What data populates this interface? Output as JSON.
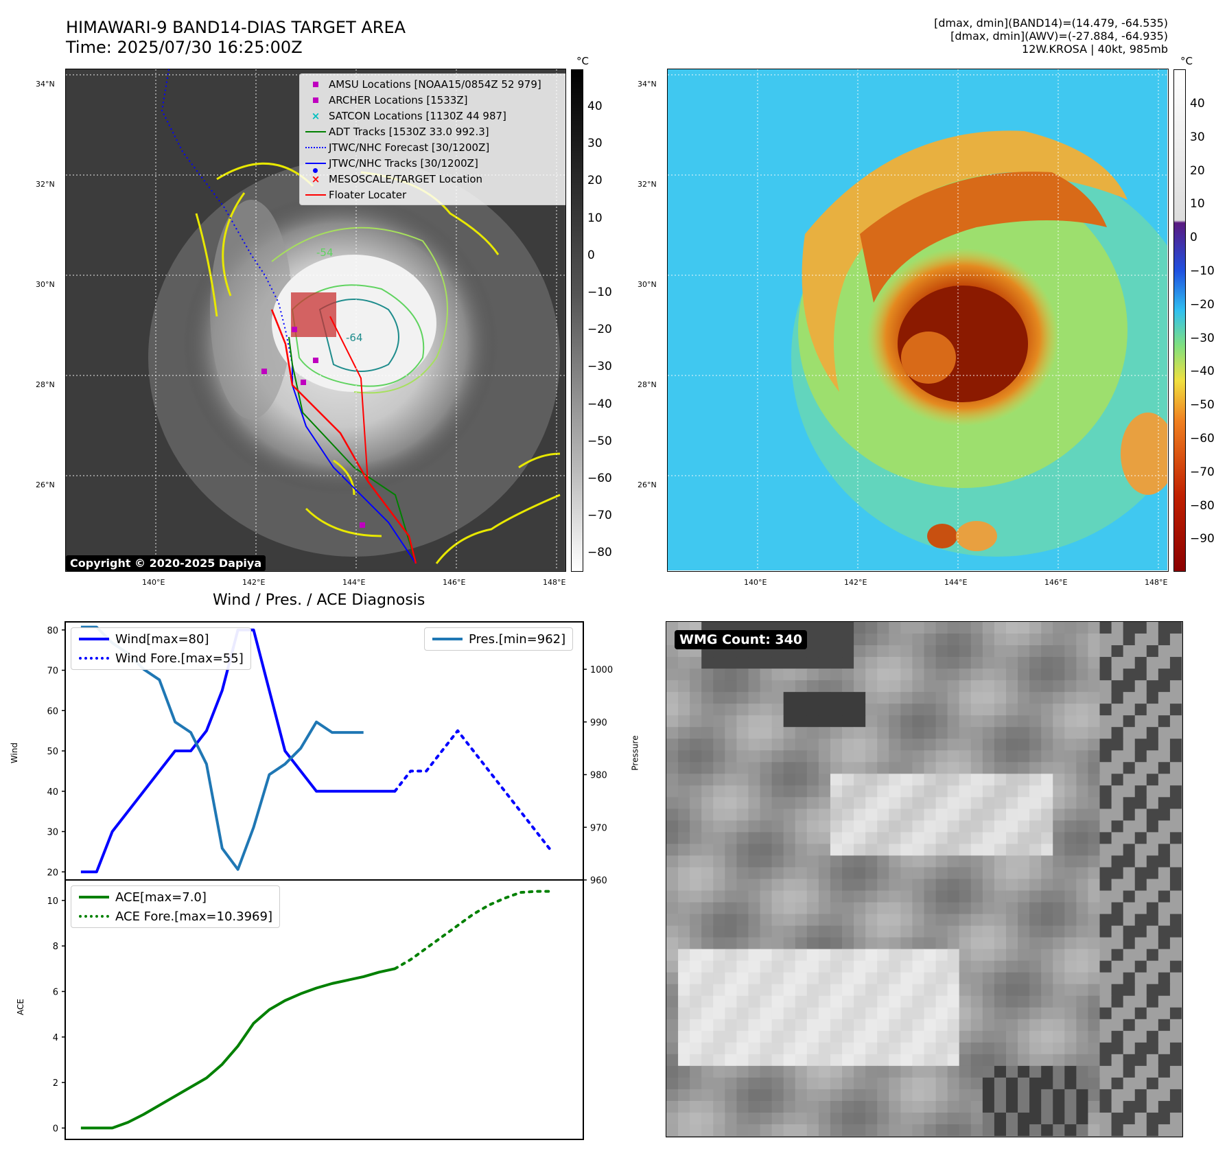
{
  "top_left": {
    "title_line1": "HIMAWARI-9 BAND14-DIAS TARGET AREA",
    "title_line2": "Time: 2025/07/30 16:25:00Z",
    "copyright": "Copyright © 2020-2025 Dapiya",
    "colorbar_unit": "°C",
    "colorbar_ticks": [
      "40",
      "30",
      "20",
      "10",
      "0",
      "−10",
      "−20",
      "−30",
      "−40",
      "−50",
      "−60",
      "−70",
      "−80"
    ],
    "lat_labels": [
      "34°N",
      "32°N",
      "30°N",
      "28°N",
      "26°N"
    ],
    "lon_labels": [
      "140°E",
      "142°E",
      "144°E",
      "146°E",
      "148°E"
    ],
    "contour_labels": [
      "-54",
      "-64"
    ],
    "legend": [
      {
        "label": "AMSU Locations [NOAA15/0854Z 52 979]",
        "symbol": "square",
        "color": "#bf00bf"
      },
      {
        "label": "ARCHER Locations [1533Z]",
        "symbol": "square",
        "color": "#bf00bf"
      },
      {
        "label": "SATCON Locations [1130Z 44 987]",
        "symbol": "x",
        "color": "#00bfbf"
      },
      {
        "label": "ADT Tracks [1530Z 33.0 992.3]",
        "symbol": "line",
        "color": "#008000"
      },
      {
        "label": "JTWC/NHC Forecast [30/1200Z]",
        "symbol": "dotted",
        "color": "#0000ff"
      },
      {
        "label": "JTWC/NHC Tracks [30/1200Z]",
        "symbol": "line-dot",
        "color": "#0000ff"
      },
      {
        "label": "MESOSCALE/TARGET Location",
        "symbol": "x",
        "color": "#ff0000"
      },
      {
        "label": "Floater Locater",
        "symbol": "line",
        "color": "#ff0000"
      }
    ]
  },
  "top_right": {
    "info_line1": "[dmax, dmin](BAND14)=(14.479, -64.535)",
    "info_line2": "[dmax, dmin](AWV)=(-27.884, -64.935)",
    "info_line3": "12W.KROSA | 40kt, 985mb",
    "colorbar_unit": "°C",
    "colorbar_ticks": [
      "40",
      "30",
      "20",
      "10",
      "0",
      "−10",
      "−20",
      "−30",
      "−40",
      "−50",
      "−60",
      "−70",
      "−80",
      "−90"
    ],
    "lat_labels": [
      "34°N",
      "32°N",
      "30°N",
      "28°N",
      "26°N"
    ],
    "lon_labels": [
      "140°E",
      "142°E",
      "144°E",
      "146°E",
      "148°E"
    ]
  },
  "bottom_left_title": "Wind / Pres. / ACE Diagnosis",
  "bottom_right": {
    "badge": "WMG Count: 340"
  },
  "axes": {
    "wind_ylabel": "Wind",
    "pres_ylabel": "Pressure",
    "ace_ylabel": "ACE",
    "wind_ticks": [
      "80",
      "70",
      "60",
      "50",
      "40",
      "30",
      "20"
    ],
    "pres_ticks": [
      "1000",
      "990",
      "980",
      "970",
      "960"
    ],
    "ace_ticks": [
      "10",
      "8",
      "6",
      "4",
      "2",
      "0"
    ]
  },
  "legends": {
    "wind": "Wind[max=80]",
    "wind_fore": "Wind Fore.[max=55]",
    "pres": "Pres.[min=962]",
    "ace": "ACE[max=7.0]",
    "ace_fore": "ACE Fore.[max=10.3969]"
  },
  "chart_data": [
    {
      "type": "line",
      "title": "Wind / Pres. / ACE Diagnosis",
      "ylabel": "Wind",
      "ylim": [
        18,
        82
      ],
      "series": [
        {
          "name": "Wind[max=80]",
          "style": "solid",
          "color": "#0000ff",
          "x": [
            0,
            1,
            2,
            3,
            4,
            5,
            6,
            7,
            8,
            9,
            10,
            11,
            12,
            13,
            14,
            15,
            16,
            17,
            18,
            19,
            20
          ],
          "values": [
            20,
            20,
            30,
            35,
            40,
            45,
            50,
            50,
            55,
            65,
            80,
            80,
            65,
            50,
            45,
            40,
            40,
            40,
            40,
            40,
            40
          ]
        },
        {
          "name": "Wind Fore.[max=55]",
          "style": "dotted",
          "color": "#0000ff",
          "x": [
            20,
            21,
            22,
            23,
            24,
            25,
            26,
            27,
            28,
            29,
            30
          ],
          "values": [
            40,
            45,
            45,
            50,
            55,
            50,
            45,
            40,
            35,
            30,
            25
          ]
        }
      ]
    },
    {
      "type": "line",
      "ylabel": "Pressure",
      "ylim": [
        960,
        1009
      ],
      "series": [
        {
          "name": "Pres.[min=962]",
          "style": "solid",
          "color": "#1f77b4",
          "x": [
            0,
            1,
            2,
            3,
            4,
            5,
            6,
            7,
            8,
            9,
            10,
            11,
            12,
            13,
            14,
            15,
            16,
            17,
            18
          ],
          "values": [
            1008,
            1008,
            1005,
            1003,
            1000,
            998,
            990,
            988,
            982,
            966,
            962,
            970,
            980,
            982,
            985,
            990,
            988,
            988,
            988
          ]
        }
      ]
    },
    {
      "type": "line",
      "ylabel": "ACE",
      "ylim": [
        -0.5,
        10.9
      ],
      "series": [
        {
          "name": "ACE[max=7.0]",
          "style": "solid",
          "color": "#008000",
          "x": [
            0,
            1,
            2,
            3,
            4,
            5,
            6,
            7,
            8,
            9,
            10,
            11,
            12,
            13,
            14,
            15,
            16,
            17,
            18,
            19,
            20
          ],
          "values": [
            0,
            0,
            0,
            0.25,
            0.6,
            1.0,
            1.4,
            1.8,
            2.2,
            2.8,
            3.6,
            4.6,
            5.2,
            5.6,
            5.9,
            6.15,
            6.35,
            6.5,
            6.65,
            6.85,
            7.0
          ]
        },
        {
          "name": "ACE Fore.[max=10.3969]",
          "style": "dotted",
          "color": "#008000",
          "x": [
            20,
            21,
            22,
            23,
            24,
            25,
            26,
            27,
            28,
            29,
            30
          ],
          "values": [
            7.0,
            7.4,
            7.9,
            8.4,
            8.9,
            9.4,
            9.8,
            10.1,
            10.35,
            10.4,
            10.4
          ]
        }
      ]
    }
  ]
}
